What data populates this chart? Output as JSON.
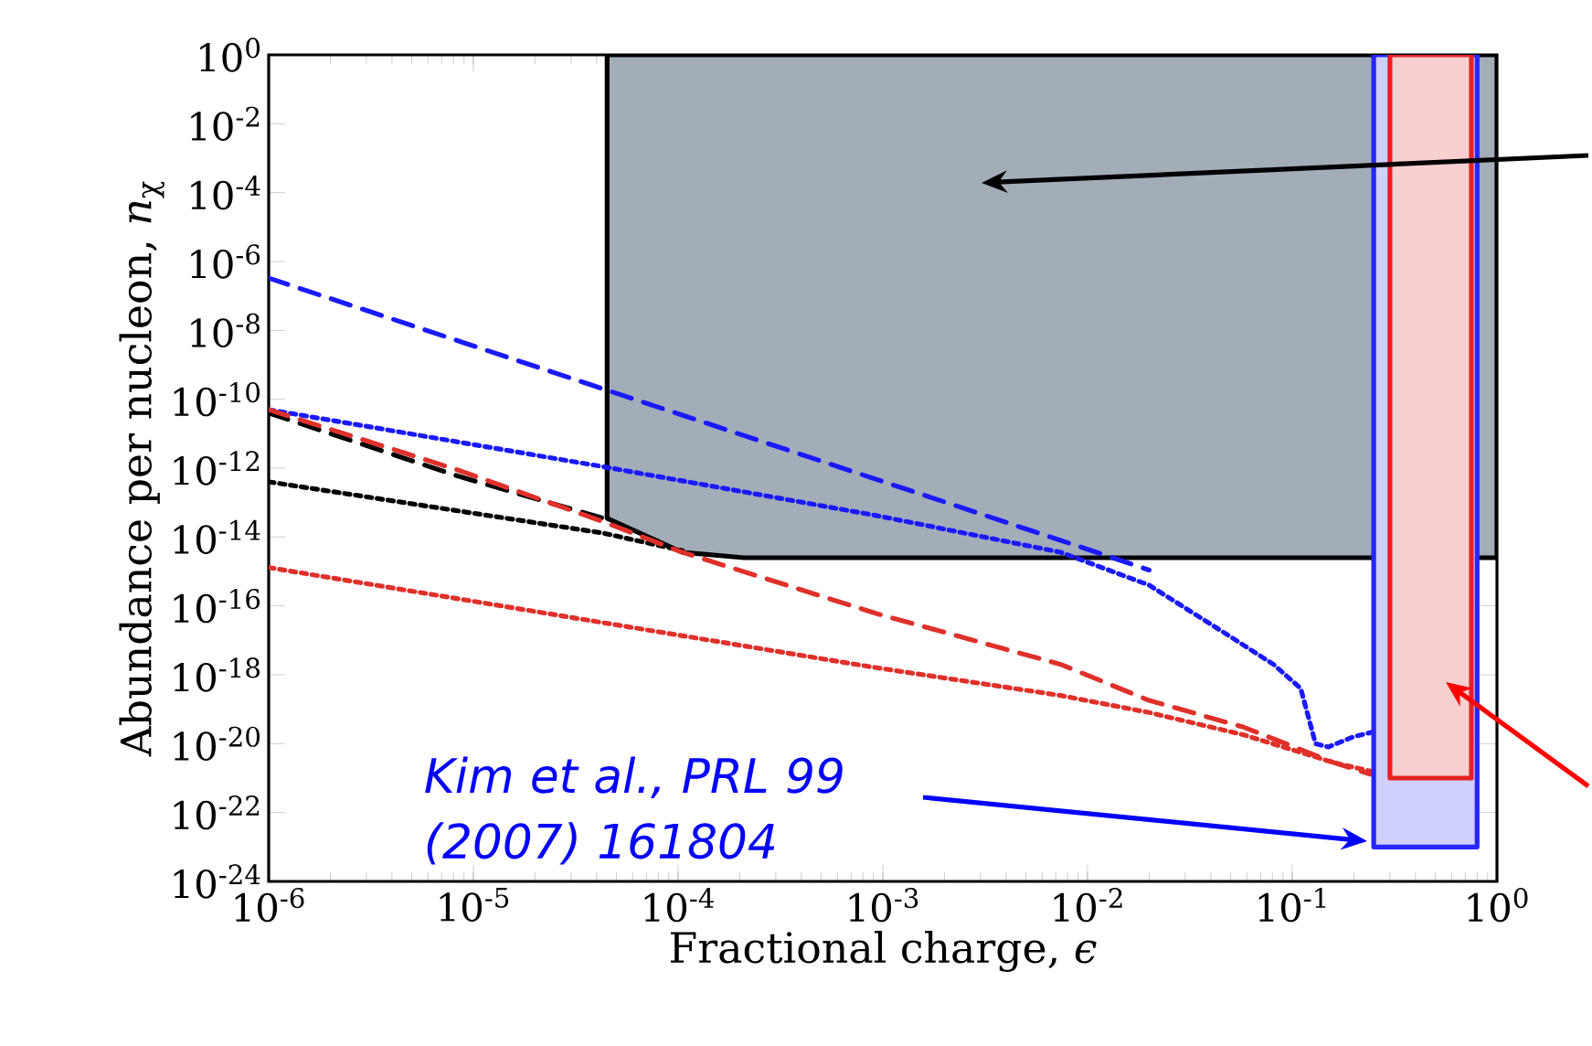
{
  "chart_data": {
    "type": "line",
    "xlabel": "Fractional charge, *ϵ*",
    "ylabel": "Abundance per nucleon, *n*$_{χ}$",
    "log": "xy",
    "grid": false,
    "marker": "none",
    "xlim": [
      1e-06,
      1
    ],
    "ylim": [
      1e-24,
      1
    ],
    "xticks": [
      {
        "value": 1e-06,
        "label": "10$^{-6}$"
      },
      {
        "value": 1e-05,
        "label": "10$^{-5}$"
      },
      {
        "value": 0.0001,
        "label": "10$^{-4}$"
      },
      {
        "value": 0.001,
        "label": "10$^{-3}$"
      },
      {
        "value": 0.01,
        "label": "10$^{-2}$"
      },
      {
        "value": 0.1,
        "label": "10$^{-1}$"
      },
      {
        "value": 1,
        "label": "10$^{0}$"
      }
    ],
    "yticks": [
      {
        "value": 1e-24,
        "label": "10$^{-24}$"
      },
      {
        "value": 1e-22,
        "label": "10$^{-22}$"
      },
      {
        "value": 1e-20,
        "label": "10$^{-20}$"
      },
      {
        "value": 1e-18,
        "label": "10$^{-18}$"
      },
      {
        "value": 1e-16,
        "label": "10$^{-16}$"
      },
      {
        "value": 1e-14,
        "label": "10$^{-14}$"
      },
      {
        "value": 1e-12,
        "label": "10$^{-12}$"
      },
      {
        "value": 1e-10,
        "label": "10$^{-10}$"
      },
      {
        "value": 1e-08,
        "label": "10$^{-8}$"
      },
      {
        "value": 1e-06,
        "label": "10$^{-6}$"
      },
      {
        "value": 0.0001,
        "label": "10$^{-4}$"
      },
      {
        "value": 0.01,
        "label": "10$^{-2}$"
      },
      {
        "value": 1,
        "label": "10$^{0}$"
      }
    ],
    "series": [
      {
        "type": "area",
        "color": "#a3adb8",
        "line_style": "solid",
        "x": [
          4.5e-05,
          4.5e-05,
          0.000105,
          0.00021,
          0.001,
          1,
          1
        ],
        "values": [
          1,
          3.5e-14,
          3.6e-15,
          2.5e-15,
          2.5e-15,
          2.5e-15,
          1
        ]
      },
      {
        "color": "#1a1aff",
        "line_style": "dashed",
        "x": [
          1e-06,
          0.0001,
          0.01,
          0.02
        ],
        "values": [
          3.3e-07,
          3.8e-11,
          4.4e-15,
          1.1e-15
        ]
      },
      {
        "color": "#1a1aff",
        "line_style": "dotted",
        "x": [
          1e-06,
          4.3e-05,
          0.00093,
          0.0074,
          0.02,
          0.047,
          0.081,
          0.11,
          0.13,
          0.15,
          0.2,
          0.25
        ],
        "values": [
          5e-11,
          1.1e-12,
          4.2e-14,
          3.6e-15,
          4e-16,
          1.6e-17,
          2e-18,
          4e-19,
          1e-20,
          8e-21,
          1.6e-20,
          2.2e-20
        ]
      },
      {
        "color": "#000000",
        "line_style": "dashed",
        "x": [
          1e-06,
          8.3e-06,
          4.3e-05
        ],
        "values": [
          4e-11,
          6e-13,
          3.5e-14
        ]
      },
      {
        "color": "#000000",
        "line_style": "dotted",
        "x": [
          1e-06,
          4.3e-05,
          0.000105
        ],
        "values": [
          4e-13,
          1.3e-14,
          4e-15
        ]
      },
      {
        "color": "#e0302a",
        "line_style": "dashed",
        "x": [
          1e-06,
          8.3e-06,
          4.3e-05,
          0.000105,
          0.00093,
          0.0074,
          0.02,
          0.058,
          0.16,
          0.24
        ],
        "values": [
          5e-11,
          9e-13,
          2.8e-14,
          3.6e-15,
          6e-17,
          2e-18,
          1.8e-19,
          3e-20,
          2.8e-21,
          1.3e-21
        ]
      },
      {
        "color": "#e0302a",
        "line_style": "dotted",
        "x": [
          1e-06,
          0.00093,
          0.0074,
          0.02,
          0.058,
          0.16,
          0.24
        ],
        "values": [
          1.3e-15,
          1.6e-18,
          2.5e-19,
          8e-20,
          1.8e-20,
          2.8e-21,
          1.6e-21
        ]
      },
      {
        "type": "area",
        "color": "#d0d0ff",
        "line_style": "solid",
        "x": [
          0.25,
          0.25,
          0.8,
          0.8
        ],
        "values": [
          1,
          1e-23,
          1e-23,
          1
        ]
      },
      {
        "type": "area",
        "color": "#f8d0d0",
        "line_style": "solid",
        "x": [
          0.3,
          0.3,
          0.75,
          0.75
        ],
        "values": [
          1,
          1e-21,
          1e-21,
          1
        ]
      }
    ],
    "annotations": [
      "Kim et al., PRL 99 (2007) 161804"
    ]
  }
}
